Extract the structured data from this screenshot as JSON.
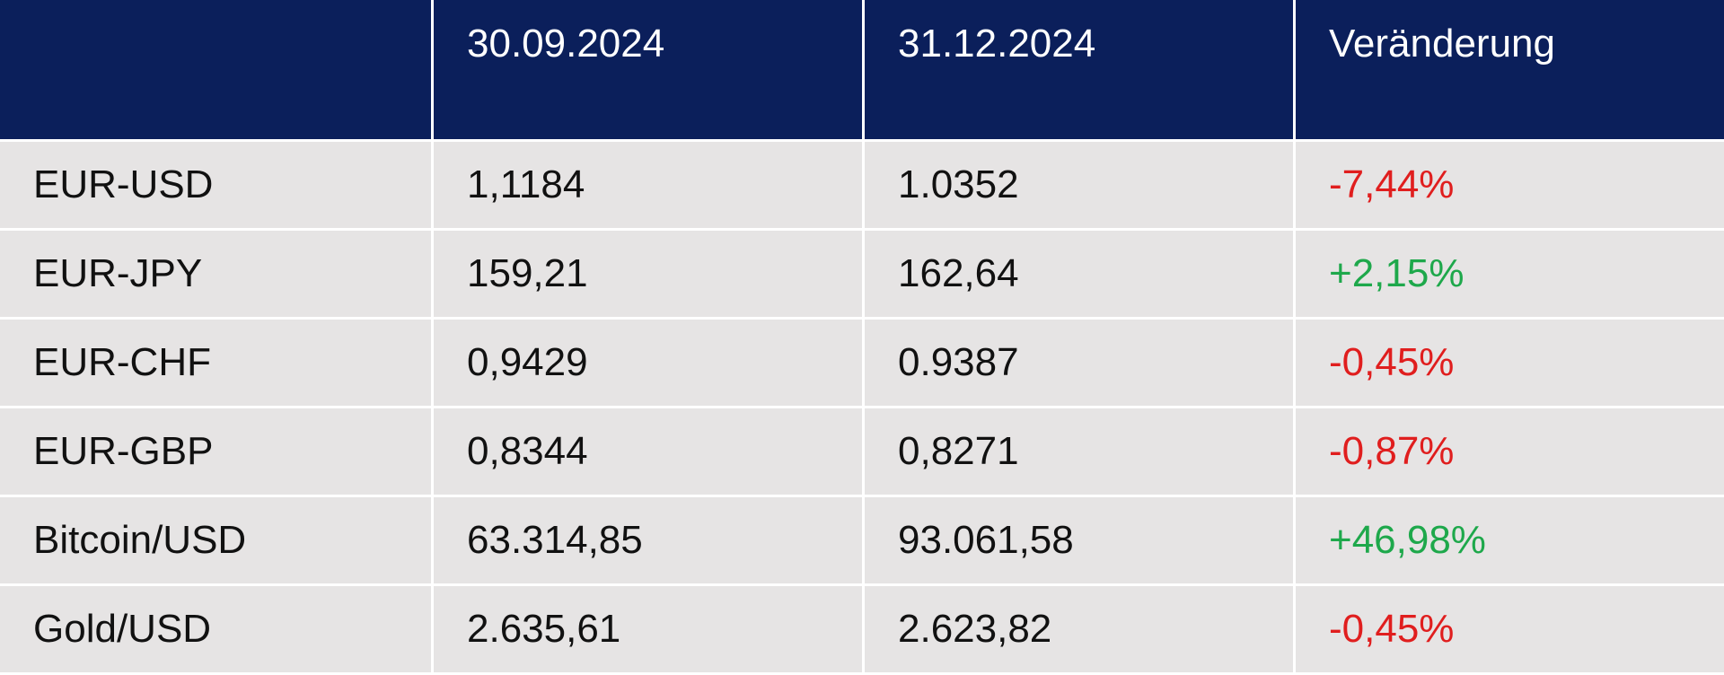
{
  "table": {
    "header": [
      "30.09.2024",
      "31.12.2024",
      "Veränderung"
    ],
    "rows": [
      [
        "EUR-USD",
        "1,1184",
        "1.0352",
        "-7,44%"
      ],
      [
        "EUR-JPY",
        "159,21",
        "162,64",
        "+2,15%"
      ],
      [
        "EUR-CHF",
        "0,9429",
        "0.9387",
        "-0,45%"
      ],
      [
        "EUR-GBP",
        "0,8344",
        "0,8271",
        "-0,87%"
      ],
      [
        "Bitcoin/USD",
        "63.314,85",
        "93.061,58",
        "+46,98%"
      ],
      [
        "Gold/USD",
        "2.635,61",
        "2.623,82",
        "-0,45%"
      ]
    ],
    "colors": {
      "header_background": "#0b1f5b",
      "row_background": "#e6e4e4",
      "positive": "#1ea84b",
      "negative": "#e01e1e"
    }
  }
}
